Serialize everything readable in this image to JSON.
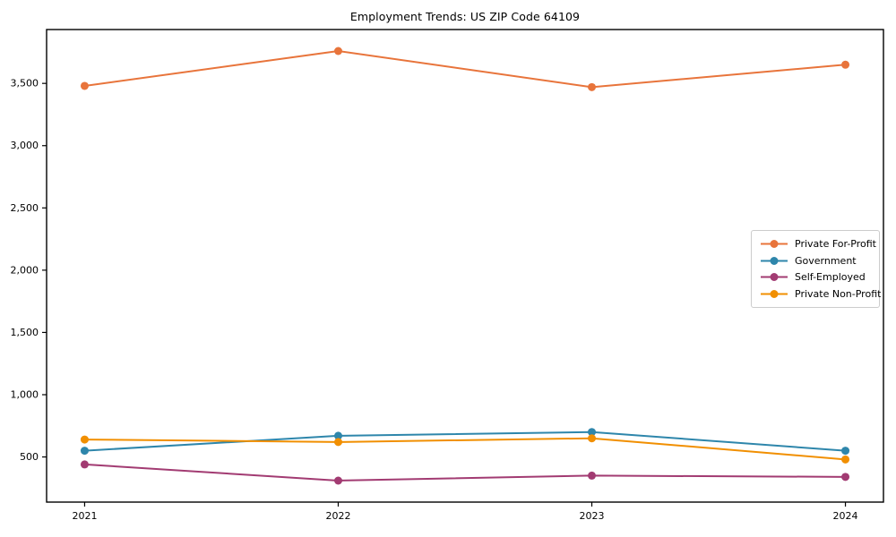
{
  "page": {
    "title": "Employment Trends: US ZIP Code 64109"
  },
  "chart_data": {
    "type": "line",
    "title": "Employment Trends: US ZIP Code 64109",
    "xlabel": "",
    "ylabel": "",
    "x": [
      2021,
      2022,
      2023,
      2024
    ],
    "x_tick_labels": [
      "2021",
      "2022",
      "2023",
      "2024"
    ],
    "y_ticks": [
      500,
      1000,
      1500,
      2000,
      2500,
      3000,
      3500
    ],
    "y_tick_labels": [
      "500",
      "1,000",
      "1,500",
      "2,000",
      "2,500",
      "3,000",
      "3,500"
    ],
    "xlim": [
      2020.85,
      2024.15
    ],
    "ylim": [
      137.5,
      3932.5
    ],
    "grid": false,
    "legend_position": "center-right",
    "marker": "circle",
    "series": [
      {
        "name": "Private For-Profit",
        "color": "#E8743B",
        "values": [
          3480,
          3760,
          3470,
          3650
        ]
      },
      {
        "name": "Government",
        "color": "#2E86AB",
        "values": [
          550,
          670,
          700,
          550
        ]
      },
      {
        "name": "Self-Employed",
        "color": "#A23B72",
        "values": [
          440,
          310,
          350,
          340
        ]
      },
      {
        "name": "Private Non-Profit",
        "color": "#F18F01",
        "values": [
          640,
          620,
          650,
          480
        ]
      }
    ]
  }
}
